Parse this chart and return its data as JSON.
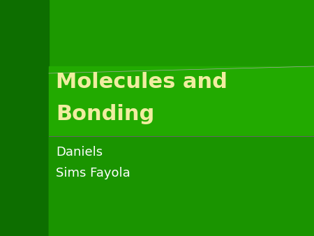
{
  "bg_color": "#1c9900",
  "left_strip_color": "#0d6e00",
  "title_box_color": "#22aa00",
  "subtitle_box_color": "#1a9400",
  "title_text_line1": "Molecules and",
  "title_text_line2": "Bonding",
  "title_color": "#f0eda0",
  "subtitle_line1": "Daniels",
  "subtitle_line2": "Sims Fayola",
  "subtitle_color": "#ffffff",
  "fig_width": 4.5,
  "fig_height": 3.38,
  "dpi": 100
}
